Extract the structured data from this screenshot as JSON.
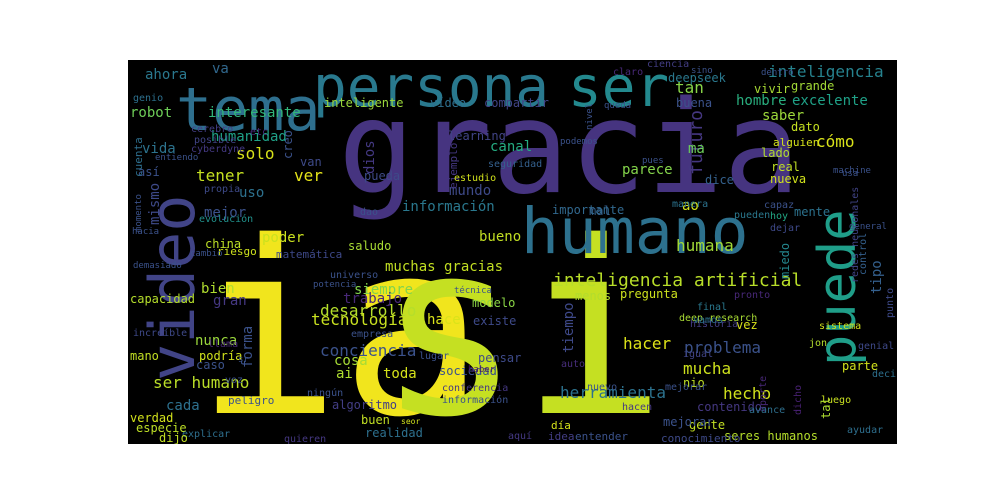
{
  "chart_data": {
    "type": "wordcloud",
    "title": "",
    "words": [
      {
        "text": "ia",
        "color": "#f1e51d"
      },
      {
        "text": "si",
        "color": "#c5e022"
      },
      {
        "text": "gracia",
        "color": "#463480"
      },
      {
        "text": "humano",
        "color": "#2d718e"
      },
      {
        "text": "tema",
        "color": "#2e6f8e"
      },
      {
        "text": "persona",
        "color": "#29798e"
      },
      {
        "text": "ser",
        "color": "#23898e"
      },
      {
        "text": "video",
        "color": "#414487"
      },
      {
        "text": "puede",
        "color": "#1f9e89"
      },
      {
        "text": "inteligencia artificial",
        "color": "#b8de29"
      },
      {
        "text": "inteligencia",
        "color": "#26828e"
      },
      {
        "text": "desarrollo",
        "color": "#b5de2b"
      },
      {
        "text": "humana",
        "color": "#a2da37"
      },
      {
        "text": "conciencia",
        "color": "#3b528b"
      },
      {
        "text": "tecnología",
        "color": "#c8e020"
      },
      {
        "text": "problema",
        "color": "#3b528b"
      },
      {
        "text": "herramienta",
        "color": "#2c728e"
      },
      {
        "text": "hecho",
        "color": "#d0e11c"
      },
      {
        "text": "mucha",
        "color": "#cde11d"
      },
      {
        "text": "hacer",
        "color": "#dde318"
      },
      {
        "text": "ser humano",
        "color": "#bade28"
      },
      {
        "text": "muchas gracias",
        "color": "#c2df23"
      },
      {
        "text": "información",
        "color": "#2a788e"
      },
      {
        "text": "mundo",
        "color": "#3e4a89"
      },
      {
        "text": "bueno",
        "color": "#c2df23"
      },
      {
        "text": "canal",
        "color": "#25ac82"
      },
      {
        "text": "parece",
        "color": "#84d44b"
      },
      {
        "text": "humanidad",
        "color": "#1fa187"
      },
      {
        "text": "hombre",
        "color": "#29af7f"
      },
      {
        "text": "excelente",
        "color": "#1fa187"
      },
      {
        "text": "interesante",
        "color": "#32b67a"
      },
      {
        "text": "ahora",
        "color": "#2a788e"
      },
      {
        "text": "va",
        "color": "#31688e"
      },
      {
        "text": "tan",
        "color": "#89d548"
      },
      {
        "text": "futuro",
        "color": "#453781"
      },
      {
        "text": "buena",
        "color": "#3b528b"
      },
      {
        "text": "saber",
        "color": "#9dd93b"
      },
      {
        "text": "cómo",
        "color": "#dae319"
      },
      {
        "text": "vida",
        "color": "#2c738e"
      },
      {
        "text": "solo",
        "color": "#d8e219"
      },
      {
        "text": "robot",
        "color": "#6ece58"
      },
      {
        "text": "tener",
        "color": "#c5e021"
      },
      {
        "text": "ver",
        "color": "#e5e419"
      },
      {
        "text": "mejor",
        "color": "#3b528b"
      },
      {
        "text": "uso",
        "color": "#2d718e"
      },
      {
        "text": "mismo",
        "color": "#3e4a89"
      },
      {
        "text": "así",
        "color": "#3b528b"
      },
      {
        "text": "dios",
        "color": "#443983"
      },
      {
        "text": "ma",
        "color": "#6ccd5a"
      },
      {
        "text": "ao",
        "color": "#d2e21b"
      },
      {
        "text": "poder",
        "color": "#cae11f"
      },
      {
        "text": "china",
        "color": "#bddf26"
      },
      {
        "text": "siempre",
        "color": "#81d34d"
      },
      {
        "text": "saludo",
        "color": "#a8db34"
      },
      {
        "text": "trabajo",
        "color": "#482878"
      },
      {
        "text": "bien",
        "color": "#b0dd2f"
      },
      {
        "text": "gran",
        "color": "#453882"
      },
      {
        "text": "forma",
        "color": "#3b528b"
      },
      {
        "text": "nunca",
        "color": "#9bd93c"
      },
      {
        "text": "cosa",
        "color": "#a5db36"
      },
      {
        "text": "toda",
        "color": "#d5e21a"
      },
      {
        "text": "ai",
        "color": "#addc30"
      },
      {
        "text": "hace",
        "color": "#dae319"
      },
      {
        "text": "existe",
        "color": "#3e4a89"
      },
      {
        "text": "modelo",
        "color": "#8bd646"
      },
      {
        "text": "tiempo",
        "color": "#3e4989"
      },
      {
        "text": "vez",
        "color": "#d8e219"
      },
      {
        "text": "pregunta",
        "color": "#cde11d"
      },
      {
        "text": "menos",
        "color": "#b2dd2d"
      },
      {
        "text": "tipo",
        "color": "#34608d"
      },
      {
        "text": "mente",
        "color": "#2c728e"
      },
      {
        "text": "miedo",
        "color": "#24868e"
      },
      {
        "text": "cada",
        "color": "#2d708e"
      },
      {
        "text": "verdad",
        "color": "#d2e21b"
      },
      {
        "text": "especie",
        "color": "#bddf26"
      },
      {
        "text": "buen",
        "color": "#c2df23"
      },
      {
        "text": "realidad",
        "color": "#2d708e"
      },
      {
        "text": "algoritmo",
        "color": "#433e85"
      },
      {
        "text": "contenido",
        "color": "#453882"
      },
      {
        "text": "seres humanos",
        "color": "#b5de2b"
      },
      {
        "text": "capacidad",
        "color": "#b5de2b"
      },
      {
        "text": "lado",
        "color": "#b2dd2d"
      },
      {
        "text": "real",
        "color": "#c0df25"
      },
      {
        "text": "nueva",
        "color": "#d0e11c"
      },
      {
        "text": "dice",
        "color": "#34618d"
      },
      {
        "text": "mal",
        "color": "#34608d"
      },
      {
        "text": "importante",
        "color": "#31688e"
      },
      {
        "text": "gente",
        "color": "#c2df23"
      },
      {
        "text": "deepseek",
        "color": "#2a788e"
      },
      {
        "text": "vivir",
        "color": "#a8db34"
      },
      {
        "text": "grande",
        "color": "#a2da37"
      },
      {
        "text": "alguien",
        "color": "#d5e21a"
      },
      {
        "text": "dato",
        "color": "#c5e021"
      },
      {
        "text": "learning",
        "color": "#414487"
      },
      {
        "text": "inteligente",
        "color": "#9bd93c"
      },
      {
        "text": "vídeo",
        "color": "#2e6f8e"
      },
      {
        "text": "compartir",
        "color": "#414487"
      },
      {
        "text": "ciencia",
        "color": "#433e85"
      },
      {
        "text": "claro",
        "color": "#482878"
      },
      {
        "text": "ejemplo",
        "color": "#453882"
      },
      {
        "text": "estudio",
        "color": "#d0e11c"
      },
      {
        "text": "seguridad",
        "color": "#34608d"
      },
      {
        "text": "manera",
        "color": "#2c738e"
      },
      {
        "text": "pueda",
        "color": "#3e4a89"
      },
      {
        "text": "creo",
        "color": "#3b528b"
      },
      {
        "text": "van",
        "color": "#3e4a89"
      },
      {
        "text": "cuenta",
        "color": "#2e6f8e"
      },
      {
        "text": "cerebro",
        "color": "#433e85"
      },
      {
        "text": "posible",
        "color": "#414487"
      },
      {
        "text": "cyberdyne",
        "color": "#443983"
      },
      {
        "text": "genio",
        "color": "#2d708e"
      },
      {
        "text": "etc",
        "color": "#472a7a"
      },
      {
        "text": "propia",
        "color": "#3e4a89"
      },
      {
        "text": "evolución",
        "color": "#21918c"
      },
      {
        "text": "riesgo",
        "color": "#cde11d"
      },
      {
        "text": "matemática",
        "color": "#3e4989"
      },
      {
        "text": "dao",
        "color": "#3b528b"
      },
      {
        "text": "capaz",
        "color": "#3b528b"
      },
      {
        "text": "dejar",
        "color": "#3e4989"
      },
      {
        "text": "hoy",
        "color": "#22a884"
      },
      {
        "text": "pueden",
        "color": "#2a788e"
      },
      {
        "text": "redes neuronales",
        "color": "#414487"
      },
      {
        "text": "control",
        "color": "#34608d"
      },
      {
        "text": "general",
        "color": "#3b528b"
      },
      {
        "text": "deep research",
        "color": "#a8db34"
      },
      {
        "text": "pronto",
        "color": "#482878"
      },
      {
        "text": "punto",
        "color": "#3e4a89"
      },
      {
        "text": "sistema",
        "color": "#d0e11c"
      },
      {
        "text": "historia",
        "color": "#433e85"
      },
      {
        "text": "final",
        "color": "#2a788e"
      },
      {
        "text": "vamos",
        "color": "#2c728e"
      },
      {
        "text": "jon",
        "color": "#b2dd2d"
      },
      {
        "text": "genial",
        "color": "#3e4989"
      },
      {
        "text": "parte",
        "color": "#d2e21b"
      },
      {
        "text": "decir",
        "color": "#2d708e"
      },
      {
        "text": "igual",
        "color": "#414487"
      },
      {
        "text": "pensar",
        "color": "#3e4a89"
      },
      {
        "text": "sociedad",
        "color": "#3b528b"
      },
      {
        "text": "haber",
        "color": "#481769"
      },
      {
        "text": "auto",
        "color": "#472d7b"
      },
      {
        "text": "nuevo",
        "color": "#3b528b"
      },
      {
        "text": "hacen",
        "color": "#453882"
      },
      {
        "text": "nio",
        "color": "#bddf26"
      },
      {
        "text": "aporte",
        "color": "#482878"
      },
      {
        "text": "dicho",
        "color": "#482173"
      },
      {
        "text": "luego",
        "color": "#c8e020"
      },
      {
        "text": "avance",
        "color": "#2e6f8e"
      },
      {
        "text": "tal",
        "color": "#addc30"
      },
      {
        "text": "ayudar",
        "color": "#2e6f8e"
      },
      {
        "text": "mejorar",
        "color": "#3b528b"
      },
      {
        "text": "conocimiento",
        "color": "#3e4a89"
      },
      {
        "text": "entender",
        "color": "#3b528b"
      },
      {
        "text": "idea",
        "color": "#433e85"
      },
      {
        "text": "día",
        "color": "#d5e21a"
      },
      {
        "text": "aquí",
        "color": "#443983"
      },
      {
        "text": "quieren",
        "color": "#453882"
      },
      {
        "text": "explicar",
        "color": "#2e6f8e"
      },
      {
        "text": "dijo",
        "color": "#c2df23"
      },
      {
        "text": "peligro",
        "color": "#3b528b"
      },
      {
        "text": "ningún",
        "color": "#3b528b"
      },
      {
        "text": "conferencia",
        "color": "#453882"
      },
      {
        "text": "información",
        "color": "#3b528b"
      },
      {
        "text": "empresa",
        "color": "#3b528b"
      },
      {
        "text": "lugar",
        "color": "#3b528b"
      },
      {
        "text": "universo",
        "color": "#3b528b"
      },
      {
        "text": "potencia",
        "color": "#3b528b"
      },
      {
        "text": "técnica",
        "color": "#3b528b"
      },
      {
        "text": "podría",
        "color": "#d0e11c"
      },
      {
        "text": "mano",
        "color": "#c2df23"
      },
      {
        "text": "caso",
        "color": "#3b528b"
      },
      {
        "text": "llama",
        "color": "#482878"
      },
      {
        "text": "increíble",
        "color": "#3e4989"
      },
      {
        "text": "demasiado",
        "color": "#3b528b"
      },
      {
        "text": "cambio",
        "color": "#3b528b"
      },
      {
        "text": "hacia",
        "color": "#3b528b"
      },
      {
        "text": "entiendo",
        "color": "#3b528b"
      },
      {
        "text": "momento",
        "color": "#3b528b"
      },
      {
        "text": "dentro",
        "color": "#3b528b"
      },
      {
        "text": "machine",
        "color": "#3b528b"
      },
      {
        "text": "sino",
        "color": "#3b528b"
      },
      {
        "text": "queda",
        "color": "#3b528b"
      },
      {
        "text": "nivel",
        "color": "#3b528b"
      },
      {
        "text": "podemos",
        "color": "#3b528b"
      },
      {
        "text": "usa",
        "color": "#3b528b"
      },
      {
        "text": "pues",
        "color": "#3b528b"
      },
      {
        "text": "voz",
        "color": "#3b528b"
      },
      {
        "text": "sr",
        "color": "#3b528b"
      },
      {
        "text": "seor",
        "color": "#d0e11c"
      },
      {
        "text": "mejorar",
        "color": "#3b528b"
      }
    ]
  }
}
